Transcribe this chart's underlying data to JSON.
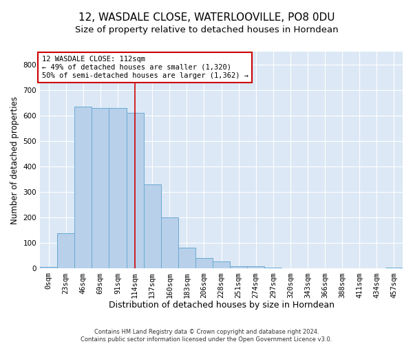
{
  "title": "12, WASDALE CLOSE, WATERLOOVILLE, PO8 0DU",
  "subtitle": "Size of property relative to detached houses in Horndean",
  "xlabel": "Distribution of detached houses by size in Horndean",
  "ylabel": "Number of detached properties",
  "footer_line1": "Contains HM Land Registry data © Crown copyright and database right 2024.",
  "footer_line2": "Contains public sector information licensed under the Open Government Licence v3.0.",
  "bar_labels": [
    "0sqm",
    "23sqm",
    "46sqm",
    "69sqm",
    "91sqm",
    "114sqm",
    "137sqm",
    "160sqm",
    "183sqm",
    "206sqm",
    "228sqm",
    "251sqm",
    "274sqm",
    "297sqm",
    "320sqm",
    "343sqm",
    "366sqm",
    "388sqm",
    "411sqm",
    "434sqm",
    "457sqm"
  ],
  "bar_values": [
    6,
    140,
    635,
    630,
    630,
    610,
    330,
    200,
    83,
    43,
    27,
    10,
    10,
    5,
    0,
    0,
    0,
    0,
    0,
    0,
    4
  ],
  "bar_color": "#b8d0ea",
  "bar_edgecolor": "#6aaad4",
  "bar_width": 1.0,
  "vline_x": 5.0,
  "vline_color": "#cc0000",
  "ylim": [
    0,
    850
  ],
  "yticks": [
    0,
    100,
    200,
    300,
    400,
    500,
    600,
    700,
    800
  ],
  "annotation_text": "12 WASDALE CLOSE: 112sqm\n← 49% of detached houses are smaller (1,320)\n50% of semi-detached houses are larger (1,362) →",
  "annotation_box_color": "white",
  "annotation_box_edgecolor": "#cc0000",
  "title_fontsize": 11,
  "subtitle_fontsize": 9.5,
  "ylabel_fontsize": 8.5,
  "xlabel_fontsize": 9,
  "tick_fontsize": 7.5,
  "annotation_fontsize": 7.5,
  "footer_fontsize": 6,
  "background_color": "#dce8f5",
  "plot_bg_color": "#dce8f5"
}
